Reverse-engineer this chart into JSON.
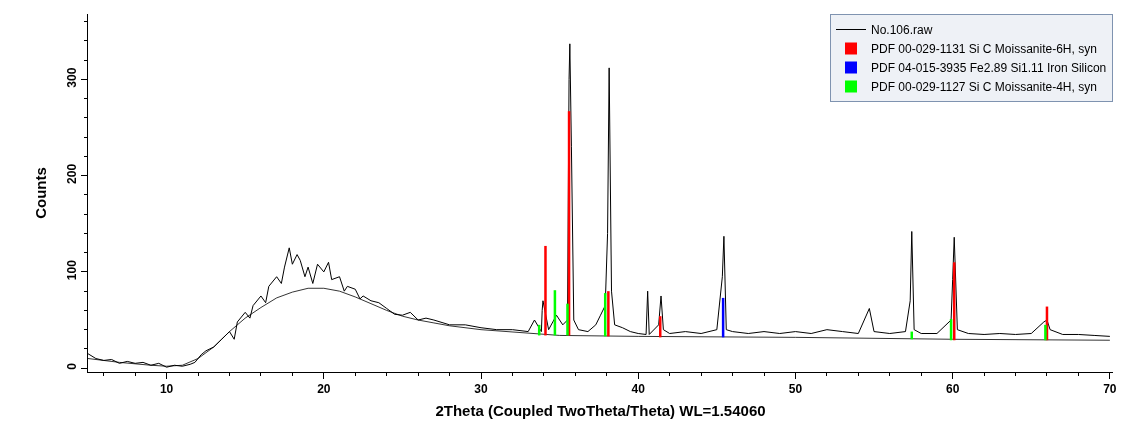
{
  "chart_data": {
    "type": "line",
    "xlabel": "2Theta (Coupled TwoTheta/Theta) WL=1.54060",
    "ylabel": "Counts",
    "xlim": [
      5,
      70.2
    ],
    "ylim": [
      -4,
      368
    ],
    "xticks": [
      10,
      20,
      30,
      40,
      50,
      60,
      70
    ],
    "yticks": [
      0,
      100,
      200,
      300
    ],
    "grid": false,
    "legend": "top right",
    "marker": "none",
    "line_style": "solid",
    "series": [
      {
        "name": "No.106.raw",
        "color": "#000000",
        "x": [
          5,
          5.5,
          6,
          6.5,
          7,
          7.5,
          8,
          8.5,
          9,
          9.5,
          10,
          10.5,
          11,
          11.5,
          11.8,
          12.2,
          12.5,
          13,
          13.5,
          14,
          14.3,
          14.5,
          15,
          15.3,
          15.5,
          16,
          16.3,
          16.5,
          17,
          17.3,
          17.5,
          17.8,
          18,
          18.3,
          18.5,
          18.8,
          19,
          19.3,
          19.6,
          20,
          20.3,
          20.5,
          21,
          21.3,
          21.5,
          22,
          22.3,
          22.5,
          23,
          23.5,
          24,
          24.5,
          25,
          25.5,
          26,
          26.5,
          27,
          28,
          29,
          30,
          31,
          32,
          33,
          33.4,
          33.84,
          33.89,
          33.94,
          34.3,
          34.8,
          35.2,
          35.5,
          35.6,
          35.65,
          35.75,
          35.9,
          36.2,
          36.8,
          37.3,
          37.6,
          37.9,
          38.05,
          38.15,
          38.3,
          38.5,
          39,
          39.5,
          40,
          40.5,
          40.6,
          40.7,
          41.3,
          41.45,
          41.6,
          42,
          43,
          44,
          45,
          45.35,
          45.45,
          45.6,
          46,
          47,
          48,
          49,
          50,
          51,
          52,
          53,
          54,
          54.7,
          55,
          56,
          57,
          57.3,
          57.4,
          57.55,
          58,
          59,
          59.9,
          60.0,
          60.1,
          60.3,
          61,
          62,
          63,
          64,
          65,
          65.8,
          66.0,
          66.2,
          67,
          68,
          69,
          70
        ],
        "values": [
          15,
          10,
          8,
          9,
          5,
          7,
          5,
          6,
          3,
          5,
          1,
          3,
          2,
          4,
          6,
          14,
          18,
          22,
          30,
          38,
          30,
          48,
          58,
          52,
          65,
          75,
          68,
          85,
          95,
          88,
          105,
          125,
          108,
          118,
          112,
          95,
          105,
          88,
          108,
          100,
          110,
          92,
          95,
          80,
          85,
          82,
          72,
          75,
          70,
          68,
          62,
          56,
          55,
          58,
          50,
          52,
          50,
          45,
          45,
          42,
          40,
          40,
          38,
          50,
          38,
          60,
          70,
          40,
          55,
          45,
          50,
          300,
          337,
          230,
          50,
          40,
          38,
          45,
          55,
          65,
          140,
          312,
          80,
          45,
          42,
          38,
          36,
          35,
          80,
          35,
          45,
          75,
          40,
          36,
          38,
          36,
          40,
          95,
          137,
          40,
          38,
          36,
          38,
          36,
          38,
          36,
          40,
          38,
          36,
          62,
          38,
          36,
          38,
          70,
          142,
          40,
          36,
          36,
          50,
          92,
          136,
          40,
          36,
          35,
          36,
          35,
          36,
          48,
          50,
          40,
          35,
          35,
          34,
          33
        ]
      },
      {
        "color": "#000000",
        "x": [
          5,
          7,
          9,
          10,
          11,
          12,
          13,
          14,
          15,
          16,
          17,
          18,
          19,
          20,
          21,
          22,
          23,
          24,
          25,
          26,
          27,
          28,
          30,
          35,
          40,
          50,
          60,
          70
        ],
        "values": [
          10,
          6,
          3,
          2,
          3,
          10,
          22,
          38,
          52,
          63,
          73,
          79,
          83,
          83,
          80,
          74,
          67,
          60,
          54,
          50,
          47,
          44,
          40,
          34,
          33,
          32,
          30,
          29
        ]
      },
      {
        "name": "PDF 00-029-1131 Si C Moissanite-6H, syn",
        "color": "#ff0000",
        "type": "bar",
        "x": [
          34.1,
          35.6,
          38.1,
          41.4,
          60.1,
          66.0
        ],
        "base": [
          34,
          34,
          33,
          32,
          29,
          29
        ],
        "values": [
          93,
          233,
          47,
          22,
          81,
          35
        ]
      },
      {
        "name": "PDF 04-015-3935 Fe2.89 Si1.11 Iron Silicon",
        "color": "#0000ff",
        "type": "bar",
        "x": [
          45.4
        ],
        "base": [
          32
        ],
        "values": [
          41
        ]
      },
      {
        "name": "PDF 00-029-1127 Si C Moissanite-4H, syn",
        "color": "#00ff00",
        "type": "bar",
        "x": [
          33.7,
          34.7,
          35.5,
          37.9,
          57.4,
          59.9,
          65.9
        ],
        "base": [
          34,
          34,
          34,
          33,
          30,
          29,
          29
        ],
        "values": [
          11,
          47,
          33,
          45,
          8,
          22,
          16
        ]
      }
    ]
  }
}
